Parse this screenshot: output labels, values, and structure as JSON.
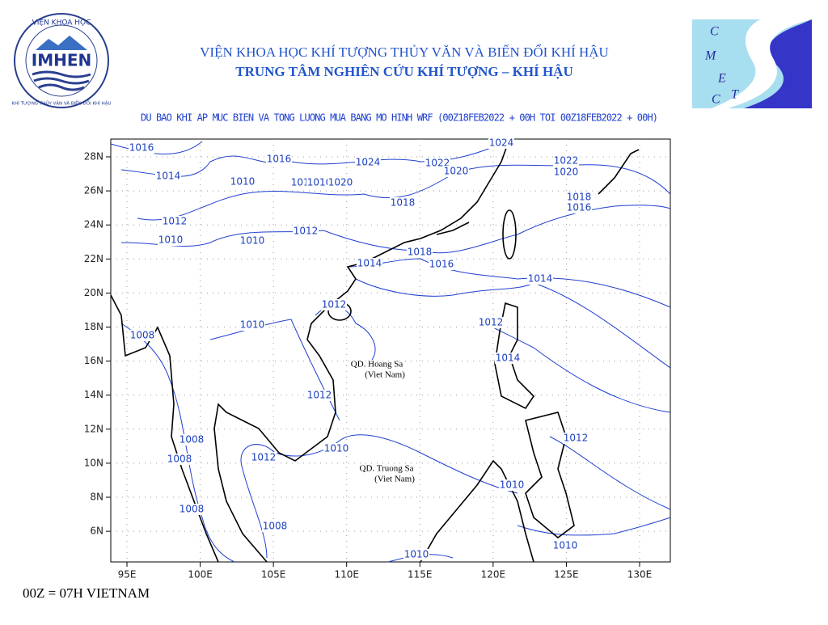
{
  "header": {
    "institute": "VIỆN KHOA HỌC KHÍ TƯỢNG THỦY VĂN VÀ BIẾN ĐỔI KHÍ HẬU",
    "center": "TRUNG TÂM NGHIÊN CỨU KHÍ TƯỢNG – KHÍ HẬU"
  },
  "logos": {
    "left_top": "VIỆN KHOA HỌC",
    "left_name": "IMHEN",
    "left_bottom": "KHÍ TƯỢNG THỦY VĂN VÀ BIẾN ĐỔI KHÍ HẬU",
    "right_letters": [
      "C",
      "M",
      "E",
      "T",
      "C"
    ]
  },
  "map": {
    "title": "DU BAO KHI AP MUC BIEN VA TONG LUONG MUA BANG MO HINH WRF (00Z18FEB2022 + 00H TOI 00Z18FEB2022 + 00H)",
    "lon_ticks": [
      "95E",
      "100E",
      "105E",
      "110E",
      "115E",
      "120E",
      "125E",
      "130E"
    ],
    "lat_ticks": [
      "28N",
      "26N",
      "24N",
      "22N",
      "20N",
      "18N",
      "16N",
      "14N",
      "12N",
      "10N",
      "8N",
      "6N"
    ],
    "contour_labels": [
      "1016",
      "1014",
      "1010",
      "1016",
      "1024",
      "1022",
      "1020",
      "1024",
      "1022",
      "1020",
      "1010",
      "1010",
      "1020",
      "1018",
      "1018",
      "1016",
      "1012",
      "1012",
      "1010",
      "1010",
      "1014",
      "1018",
      "1016",
      "1014",
      "1012",
      "1010",
      "1008",
      "1012",
      "1014",
      "1012",
      "1010",
      "1008",
      "1008",
      "1012",
      "1012",
      "1010",
      "1008",
      "1008",
      "1010",
      "1010"
    ],
    "places": [
      {
        "name": "QD. Hoang Sa",
        "country": "(Viet Nam)"
      },
      {
        "name": "QD. Truong Sa",
        "country": "(Viet Nam)"
      }
    ]
  },
  "footer": "00Z = 07H VIETNAM"
}
